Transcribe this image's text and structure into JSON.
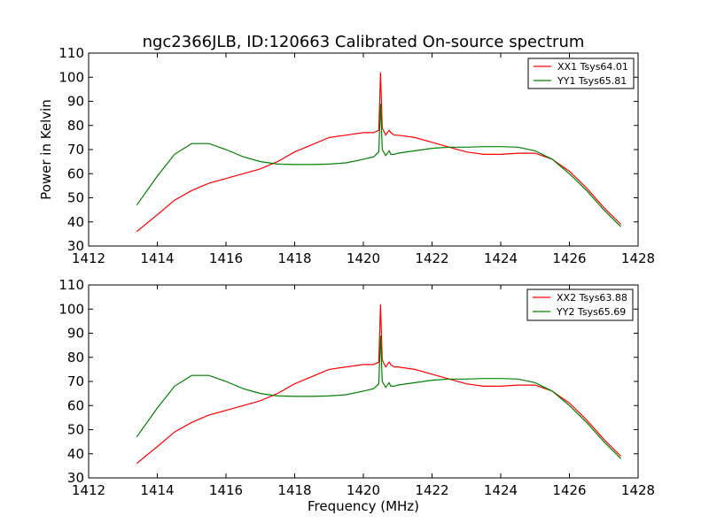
{
  "figure": {
    "title": "ngc2366JLB, ID:120663 Calibrated On-source spectrum"
  },
  "chart_data": [
    {
      "type": "line",
      "title": "ngc2366JLB, ID:120663 Calibrated On-source spectrum",
      "xlabel": "",
      "ylabel": "Power in Kelvin",
      "xlim": [
        1412,
        1428
      ],
      "ylim": [
        30,
        110
      ],
      "xticks": [
        1412,
        1414,
        1416,
        1418,
        1420,
        1422,
        1424,
        1426,
        1428
      ],
      "yticks": [
        30,
        40,
        50,
        60,
        70,
        80,
        90,
        100,
        110
      ],
      "grid": false,
      "legend_position": "top-right",
      "series": [
        {
          "name": "XX1 Tsys64.01",
          "color": "#ff0000",
          "x": [
            1413.4,
            1414.0,
            1414.5,
            1415.0,
            1415.5,
            1416.0,
            1416.5,
            1417.0,
            1417.5,
            1418.0,
            1418.5,
            1419.0,
            1419.5,
            1420.0,
            1420.3,
            1420.45,
            1420.5,
            1420.55,
            1420.65,
            1420.75,
            1420.8,
            1420.9,
            1421.0,
            1421.5,
            1422.0,
            1422.5,
            1423.0,
            1423.5,
            1424.0,
            1424.5,
            1425.0,
            1425.5,
            1426.0,
            1426.5,
            1427.0,
            1427.5
          ],
          "y": [
            36,
            43,
            49,
            53,
            56,
            58,
            60,
            62,
            65,
            69,
            72,
            75,
            76,
            77,
            77,
            78,
            102,
            79,
            76,
            78,
            77,
            76,
            76,
            75,
            73,
            71,
            69,
            68,
            68,
            68.5,
            68.5,
            66,
            61,
            54,
            46,
            39
          ]
        },
        {
          "name": "YY1 Tsys65.81",
          "color": "#008000",
          "x": [
            1413.4,
            1414.0,
            1414.5,
            1415.0,
            1415.5,
            1416.0,
            1416.5,
            1417.0,
            1417.5,
            1418.0,
            1418.5,
            1419.0,
            1419.5,
            1420.0,
            1420.3,
            1420.45,
            1420.5,
            1420.55,
            1420.65,
            1420.75,
            1420.8,
            1420.9,
            1421.0,
            1421.5,
            1422.0,
            1422.5,
            1423.0,
            1423.5,
            1424.0,
            1424.5,
            1425.0,
            1425.5,
            1426.0,
            1426.5,
            1427.0,
            1427.5
          ],
          "y": [
            47,
            59,
            68,
            72.5,
            72.5,
            70,
            67,
            65,
            64,
            63.8,
            63.8,
            64,
            64.5,
            66,
            67,
            69,
            89,
            70,
            67.5,
            69.5,
            68,
            68,
            68.5,
            69.5,
            70.5,
            71,
            71,
            71.2,
            71.2,
            71,
            69.5,
            66,
            60,
            53,
            45,
            38
          ]
        }
      ]
    },
    {
      "type": "line",
      "title": "",
      "xlabel": "Frequency (MHz)",
      "ylabel": "",
      "xlim": [
        1412,
        1428
      ],
      "ylim": [
        30,
        110
      ],
      "xticks": [
        1412,
        1414,
        1416,
        1418,
        1420,
        1422,
        1424,
        1426,
        1428
      ],
      "yticks": [
        30,
        40,
        50,
        60,
        70,
        80,
        90,
        100,
        110
      ],
      "grid": false,
      "legend_position": "top-right",
      "series": [
        {
          "name": "XX2 Tsys63.88",
          "color": "#ff0000",
          "x": [
            1413.4,
            1414.0,
            1414.5,
            1415.0,
            1415.5,
            1416.0,
            1416.5,
            1417.0,
            1417.5,
            1418.0,
            1418.5,
            1419.0,
            1419.5,
            1420.0,
            1420.3,
            1420.45,
            1420.5,
            1420.55,
            1420.65,
            1420.75,
            1420.8,
            1420.9,
            1421.0,
            1421.5,
            1422.0,
            1422.5,
            1423.0,
            1423.5,
            1424.0,
            1424.5,
            1425.0,
            1425.5,
            1426.0,
            1426.5,
            1427.0,
            1427.5
          ],
          "y": [
            36,
            43,
            49,
            53,
            56,
            58,
            60,
            62,
            65,
            69,
            72,
            75,
            76,
            77,
            77,
            78,
            102,
            79,
            76,
            78,
            77,
            76,
            76,
            75,
            73,
            71,
            69,
            68,
            68,
            68.5,
            68.5,
            66,
            61,
            54,
            46,
            39
          ]
        },
        {
          "name": "YY2 Tsys65.69",
          "color": "#008000",
          "x": [
            1413.4,
            1414.0,
            1414.5,
            1415.0,
            1415.5,
            1416.0,
            1416.5,
            1417.0,
            1417.5,
            1418.0,
            1418.5,
            1419.0,
            1419.5,
            1420.0,
            1420.3,
            1420.45,
            1420.5,
            1420.55,
            1420.65,
            1420.75,
            1420.8,
            1420.9,
            1421.0,
            1421.5,
            1422.0,
            1422.5,
            1423.0,
            1423.5,
            1424.0,
            1424.5,
            1425.0,
            1425.5,
            1426.0,
            1426.5,
            1427.0,
            1427.5
          ],
          "y": [
            47,
            59,
            68,
            72.5,
            72.5,
            70,
            67,
            65,
            64,
            63.8,
            63.8,
            64,
            64.5,
            66,
            67,
            69,
            89,
            70,
            67.5,
            69.5,
            68,
            68,
            68.5,
            69.5,
            70.5,
            71,
            71,
            71.2,
            71.2,
            71,
            69.5,
            66,
            60,
            53,
            45,
            38
          ]
        }
      ]
    }
  ]
}
